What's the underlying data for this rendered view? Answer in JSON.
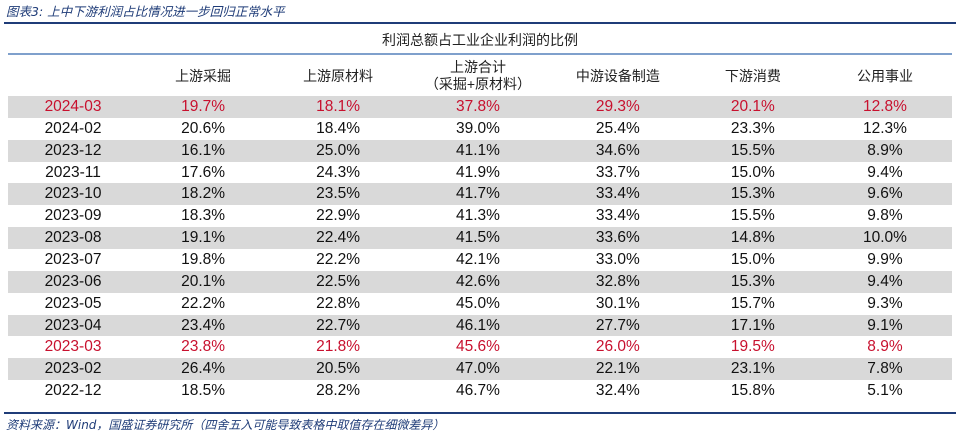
{
  "caption": "图表3: 上中下游利润占比情况进一步回归正常水平",
  "table_title": "利润总额占工业企业利润的比例",
  "headers": [
    "",
    "上游采掘",
    "上游原材料",
    "上游合计\n（采掘+原材料）",
    "中游设备制造",
    "下游消费",
    "公用事业"
  ],
  "highlight_color": "#c8102e",
  "rows": [
    [
      "2024-03",
      "19.7%",
      "18.1%",
      "37.8%",
      "29.3%",
      "20.1%",
      "12.8%"
    ],
    [
      "2024-02",
      "20.6%",
      "18.4%",
      "39.0%",
      "25.4%",
      "23.3%",
      "12.3%"
    ],
    [
      "2023-12",
      "16.1%",
      "25.0%",
      "41.1%",
      "34.6%",
      "15.5%",
      "8.9%"
    ],
    [
      "2023-11",
      "17.6%",
      "24.3%",
      "41.9%",
      "33.7%",
      "15.0%",
      "9.4%"
    ],
    [
      "2023-10",
      "18.2%",
      "23.5%",
      "41.7%",
      "33.4%",
      "15.3%",
      "9.6%"
    ],
    [
      "2023-09",
      "18.3%",
      "22.9%",
      "41.3%",
      "33.4%",
      "15.5%",
      "9.8%"
    ],
    [
      "2023-08",
      "19.1%",
      "22.4%",
      "41.5%",
      "33.6%",
      "14.8%",
      "10.0%"
    ],
    [
      "2023-07",
      "19.8%",
      "22.2%",
      "42.1%",
      "33.0%",
      "15.0%",
      "9.9%"
    ],
    [
      "2023-06",
      "20.1%",
      "22.5%",
      "42.6%",
      "32.8%",
      "15.3%",
      "9.4%"
    ],
    [
      "2023-05",
      "22.2%",
      "22.8%",
      "45.0%",
      "30.1%",
      "15.7%",
      "9.3%"
    ],
    [
      "2023-04",
      "23.4%",
      "22.7%",
      "46.1%",
      "27.7%",
      "17.1%",
      "9.1%"
    ],
    [
      "2023-03",
      "23.8%",
      "21.8%",
      "45.6%",
      "26.0%",
      "19.5%",
      "8.9%"
    ],
    [
      "2023-02",
      "26.4%",
      "20.5%",
      "47.0%",
      "22.1%",
      "23.1%",
      "7.8%"
    ],
    [
      "2022-12",
      "18.5%",
      "28.2%",
      "46.7%",
      "32.4%",
      "15.8%",
      "5.1%"
    ]
  ],
  "highlighted_rows": [
    "2024-03",
    "2023-03"
  ],
  "source": "资料来源：Wind，国盛证券研究所（四舍五入可能导致表格中取值存在细微差异）"
}
